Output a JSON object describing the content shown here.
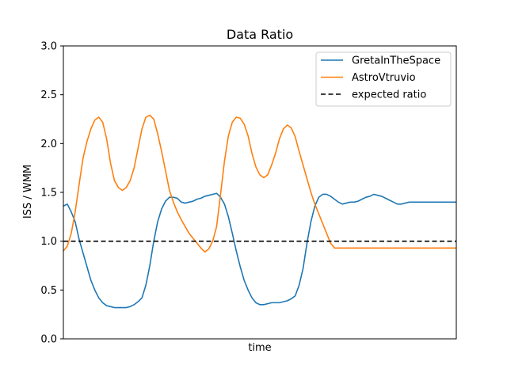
{
  "chart_data": {
    "type": "line",
    "title": "Data Ratio",
    "xlabel": "time",
    "ylabel": "ISS / WMM",
    "xlim": [
      0,
      100
    ],
    "ylim": [
      0,
      3.0
    ],
    "yticks": [
      "0.0",
      "0.5",
      "1.0",
      "1.5",
      "2.0",
      "2.5",
      "3.0"
    ],
    "grid": false,
    "legend_position": "top-right",
    "series": [
      {
        "name": "GretaInTheSpace",
        "color": "#1f77b4",
        "style": "solid",
        "x": [
          0,
          1,
          2,
          3,
          4,
          5,
          6,
          7,
          8,
          9,
          10,
          11,
          12,
          13,
          14,
          15,
          16,
          17,
          18,
          19,
          20,
          21,
          22,
          23,
          24,
          25,
          26,
          27,
          28,
          29,
          30,
          31,
          32,
          33,
          34,
          35,
          36,
          37,
          38,
          39,
          40,
          41,
          42,
          43,
          44,
          45,
          46,
          47,
          48,
          49,
          50,
          51,
          52,
          53,
          54,
          55,
          56,
          57,
          58,
          59,
          60,
          61,
          62,
          63,
          64,
          65,
          66,
          67,
          68,
          69,
          70,
          71,
          72,
          73,
          74,
          75,
          76,
          77,
          78,
          79,
          80,
          81,
          82,
          83,
          84,
          85,
          86,
          87,
          88,
          89,
          90,
          91,
          92,
          93,
          94,
          95,
          96,
          97,
          98,
          99,
          100
        ],
        "values": [
          1.36,
          1.38,
          1.3,
          1.2,
          1.02,
          0.88,
          0.74,
          0.6,
          0.5,
          0.42,
          0.37,
          0.34,
          0.33,
          0.32,
          0.32,
          0.32,
          0.32,
          0.33,
          0.35,
          0.38,
          0.42,
          0.55,
          0.75,
          1.0,
          1.2,
          1.33,
          1.41,
          1.45,
          1.45,
          1.44,
          1.4,
          1.39,
          1.4,
          1.41,
          1.43,
          1.44,
          1.46,
          1.47,
          1.48,
          1.49,
          1.45,
          1.38,
          1.25,
          1.08,
          0.9,
          0.74,
          0.6,
          0.5,
          0.42,
          0.37,
          0.35,
          0.35,
          0.36,
          0.37,
          0.37,
          0.37,
          0.38,
          0.39,
          0.41,
          0.44,
          0.55,
          0.72,
          0.98,
          1.2,
          1.36,
          1.45,
          1.48,
          1.48,
          1.46,
          1.43,
          1.4,
          1.38,
          1.39,
          1.4,
          1.4,
          1.41,
          1.43,
          1.45,
          1.46,
          1.48,
          1.47,
          1.46,
          1.44,
          1.42,
          1.4,
          1.38,
          1.38,
          1.39,
          1.4,
          1.4,
          1.4,
          1.4,
          1.4,
          1.4,
          1.4,
          1.4,
          1.4,
          1.4,
          1.4,
          1.4,
          1.4
        ]
      },
      {
        "name": "AstroVtruvio",
        "color": "#ff7f0e",
        "style": "solid",
        "x": [
          0,
          1,
          2,
          3,
          4,
          5,
          6,
          7,
          8,
          9,
          10,
          11,
          12,
          13,
          14,
          15,
          16,
          17,
          18,
          19,
          20,
          21,
          22,
          23,
          24,
          25,
          26,
          27,
          28,
          29,
          30,
          31,
          32,
          33,
          34,
          35,
          36,
          37,
          38,
          39,
          40,
          41,
          42,
          43,
          44,
          45,
          46,
          47,
          48,
          49,
          50,
          51,
          52,
          53,
          54,
          55,
          56,
          57,
          58,
          59,
          60,
          61,
          62,
          63,
          64,
          65,
          66,
          67,
          68,
          69,
          70,
          71,
          72,
          73,
          74,
          75,
          76,
          77,
          78,
          79,
          80,
          81,
          82,
          83,
          84,
          85,
          86,
          87,
          88,
          89,
          90,
          91,
          92,
          93,
          94,
          95,
          96,
          97,
          98,
          99,
          100
        ],
        "values": [
          0.9,
          0.95,
          1.08,
          1.3,
          1.58,
          1.85,
          2.02,
          2.15,
          2.24,
          2.27,
          2.22,
          2.05,
          1.8,
          1.62,
          1.55,
          1.52,
          1.55,
          1.62,
          1.75,
          1.95,
          2.15,
          2.27,
          2.29,
          2.25,
          2.1,
          1.92,
          1.72,
          1.52,
          1.4,
          1.3,
          1.22,
          1.15,
          1.08,
          1.03,
          0.98,
          0.93,
          0.89,
          0.92,
          1.0,
          1.15,
          1.48,
          1.82,
          2.08,
          2.22,
          2.27,
          2.26,
          2.2,
          2.08,
          1.9,
          1.76,
          1.68,
          1.65,
          1.68,
          1.78,
          1.9,
          2.05,
          2.15,
          2.19,
          2.16,
          2.07,
          1.92,
          1.78,
          1.64,
          1.5,
          1.38,
          1.28,
          1.18,
          1.08,
          0.98,
          0.93,
          0.93,
          0.93,
          0.93,
          0.93,
          0.93,
          0.93,
          0.93,
          0.93,
          0.93,
          0.93,
          0.93,
          0.93,
          0.93,
          0.93,
          0.93,
          0.93,
          0.93,
          0.93,
          0.93,
          0.93,
          0.93,
          0.93,
          0.93,
          0.93,
          0.93,
          0.93,
          0.93,
          0.93,
          0.93,
          0.93,
          0.93
        ]
      },
      {
        "name": "expected ratio",
        "color": "#000000",
        "style": "dashed",
        "x": [
          0,
          100
        ],
        "values": [
          1.0,
          1.0
        ]
      }
    ]
  }
}
